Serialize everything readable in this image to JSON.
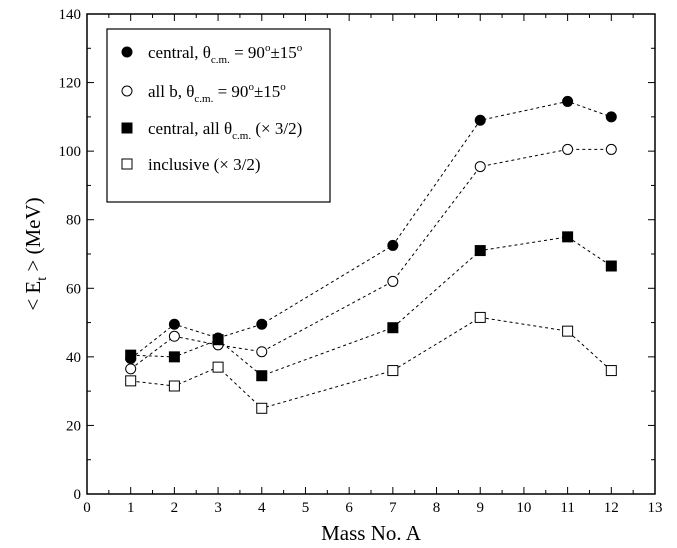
{
  "chart_data": {
    "type": "scatter",
    "xlabel": "Mass No. A",
    "ylabel_parts": {
      "pre": "< E",
      "sub": "t",
      "post": " >  (MeV)"
    },
    "xlim": [
      0,
      13
    ],
    "ylim": [
      0,
      140
    ],
    "x_ticks": [
      0,
      1,
      2,
      3,
      4,
      5,
      6,
      7,
      8,
      9,
      10,
      11,
      12,
      13
    ],
    "y_ticks": [
      0,
      20,
      40,
      60,
      80,
      100,
      120,
      140
    ],
    "grid": false,
    "legend_position": "top-left",
    "x": [
      1,
      2,
      3,
      4,
      7,
      9,
      11,
      12
    ],
    "series": [
      {
        "marker": "filled-circle",
        "legend_parts": [
          [
            "central, θ",
            ""
          ],
          [
            "c.m.",
            "sub"
          ],
          [
            " = 90",
            ""
          ],
          [
            "o",
            "sup"
          ],
          [
            "±15",
            ""
          ],
          [
            "o",
            "sup"
          ]
        ],
        "values": [
          39.5,
          49.5,
          45.5,
          49.5,
          72.5,
          109,
          114.5,
          110
        ]
      },
      {
        "marker": "open-circle",
        "legend_parts": [
          [
            "all b, θ",
            ""
          ],
          [
            "c.m.",
            "sub"
          ],
          [
            " = 90",
            ""
          ],
          [
            "o",
            "sup"
          ],
          [
            "±15",
            ""
          ],
          [
            "o",
            "sup"
          ]
        ],
        "values": [
          36.5,
          46,
          43.5,
          41.5,
          62,
          95.5,
          100.5,
          100.5
        ]
      },
      {
        "marker": "filled-square",
        "legend_parts": [
          [
            "central, all θ",
            ""
          ],
          [
            "c.m.",
            "sub"
          ],
          [
            " (× 3/2)",
            ""
          ]
        ],
        "values": [
          40.5,
          40,
          45,
          34.5,
          48.5,
          71,
          75,
          66.5
        ]
      },
      {
        "marker": "open-square",
        "legend_parts": [
          [
            "inclusive (× 3/2)",
            ""
          ]
        ],
        "values": [
          33,
          31.5,
          37,
          25,
          36,
          51.5,
          47.5,
          36
        ]
      }
    ]
  }
}
